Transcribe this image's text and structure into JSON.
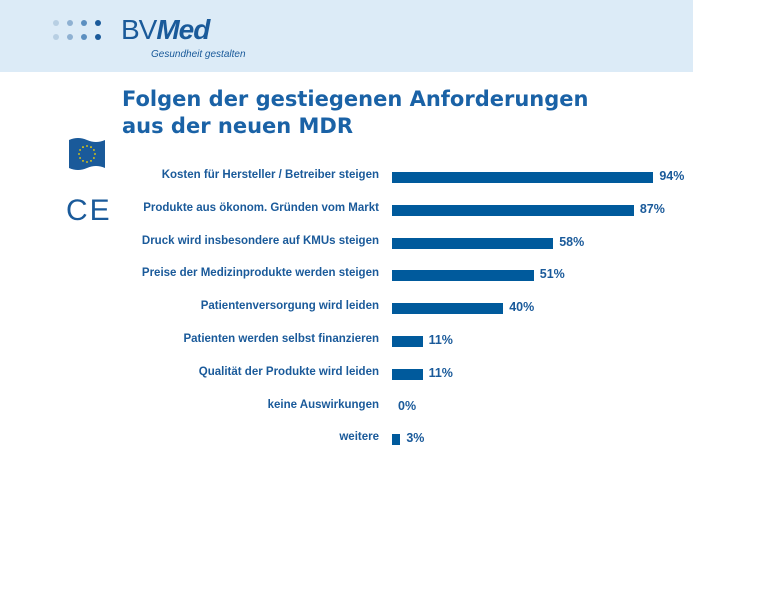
{
  "header": {
    "logo": "BVMed",
    "logo_part1": "BV",
    "logo_part2": "Med",
    "tagline": "Gesundheit gestalten"
  },
  "icons": [
    "eu-flag-icon",
    "ce-mark-icon"
  ],
  "ce_text": "CE",
  "colors": {
    "bar": "#005a9c",
    "header_bg": "#dcebf7",
    "text": "#1a5a9a"
  },
  "chart_data": {
    "type": "bar",
    "orientation": "horizontal",
    "title": "Folgen der gestiegenen Anforderungen aus der neuen MDR",
    "title_lines": [
      "Folgen der gestiegenen Anforderungen",
      "aus der neuen MDR"
    ],
    "categories": [
      "Kosten für Hersteller / Betreiber steigen",
      "Produkte aus ökonom. Gründen vom Markt",
      "Druck wird insbesondere auf KMUs steigen",
      "Preise der Medizinprodukte werden steigen",
      "Patientenversorgung wird leiden",
      "Patienten werden selbst finanzieren",
      "Qualität der Produkte wird leiden",
      "keine Auswirkungen",
      "weitere"
    ],
    "values": [
      94,
      87,
      58,
      51,
      40,
      11,
      11,
      0,
      3
    ],
    "value_labels": [
      "94%",
      "87%",
      "58%",
      "51%",
      "40%",
      "11%",
      "11%",
      "0%",
      "3%"
    ],
    "unit": "%",
    "grid": false
  }
}
